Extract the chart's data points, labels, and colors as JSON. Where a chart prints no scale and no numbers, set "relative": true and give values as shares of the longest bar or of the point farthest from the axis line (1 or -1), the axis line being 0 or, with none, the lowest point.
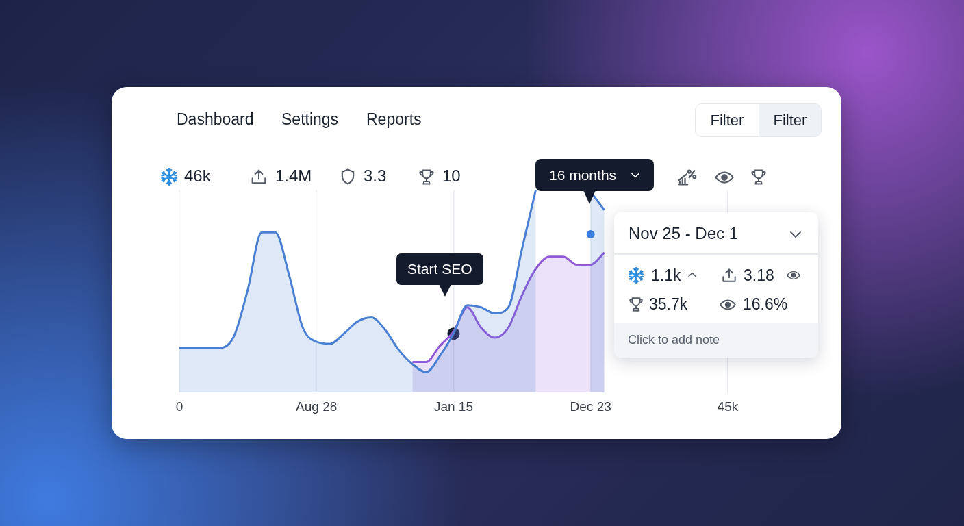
{
  "chart_data": {
    "type": "area",
    "relative": true,
    "grid": "x",
    "legend": false,
    "categories": [
      "0",
      null,
      null,
      null,
      null,
      null,
      null,
      null,
      null,
      null,
      "Aug 28",
      null,
      null,
      null,
      null,
      null,
      null,
      null,
      null,
      null,
      "Jan 15",
      null,
      null,
      null,
      null,
      null,
      null,
      null,
      null,
      null,
      "Dec 23",
      null,
      null,
      null,
      null,
      null,
      null,
      null,
      null,
      null,
      "45k",
      null,
      null,
      null,
      null,
      null
    ],
    "series": [
      {
        "color": "#4a80d4",
        "values": [
          0.22,
          0.22,
          0.22,
          0.22,
          0.28,
          0.51,
          0.79,
          0.79,
          0.58,
          0.32,
          0.25,
          0.24,
          0.29,
          0.35,
          0.37,
          0.31,
          0.21,
          0.14,
          0.1,
          0.18,
          0.29,
          0.43,
          0.42,
          0.39,
          0.42,
          0.71,
          1,
          null,
          null,
          null,
          0.99,
          0.9,
          null,
          null,
          null,
          null,
          null,
          null,
          null,
          null,
          null,
          null,
          null,
          null,
          null,
          null
        ]
      },
      {
        "color": "#9159d6",
        "values": [
          null,
          null,
          null,
          null,
          null,
          null,
          null,
          null,
          null,
          null,
          null,
          null,
          null,
          null,
          null,
          null,
          null,
          0.15,
          0.15,
          0.23,
          0.3,
          0.42,
          0.32,
          0.27,
          0.32,
          0.48,
          0.61,
          0.67,
          0.67,
          0.63,
          0.63,
          0.69,
          null,
          null,
          null,
          null,
          null,
          null,
          null,
          null,
          null,
          null,
          null,
          null,
          null,
          null
        ]
      },
      {
        "type": "scatter",
        "color": "#3b7ddd",
        "marker": "circle",
        "values": [
          null,
          null,
          null,
          null,
          null,
          null,
          null,
          null,
          null,
          null,
          null,
          null,
          null,
          null,
          null,
          null,
          null,
          null,
          null,
          null,
          null,
          null,
          null,
          null,
          null,
          null,
          null,
          null,
          null,
          null,
          0.78,
          null,
          null,
          null,
          null,
          null,
          null,
          null,
          null,
          null,
          null,
          null,
          null,
          null,
          null,
          null
        ]
      },
      {
        "type": "scatter",
        "color": "#141b2d",
        "marker": "circle",
        "values": [
          null,
          null,
          null,
          null,
          null,
          null,
          null,
          null,
          null,
          null,
          null,
          null,
          null,
          null,
          null,
          null,
          null,
          null,
          null,
          null,
          0.29,
          null,
          null,
          null,
          null,
          null,
          null,
          null,
          null,
          null,
          null,
          null,
          null,
          null,
          null,
          null,
          null,
          null,
          null,
          null,
          null,
          null,
          null,
          null,
          null,
          null
        ]
      }
    ],
    "annotations": [
      "Dashboard",
      "Settings",
      "Reports",
      "Filter",
      "Filter",
      "46k",
      "1.4M",
      "3.3",
      "10",
      "16 months",
      "Nov 25 - Dec 1",
      "1.1k",
      "3.18",
      "35.7k",
      "16.6%",
      "Click to add note",
      "Start SEO"
    ]
  }
}
